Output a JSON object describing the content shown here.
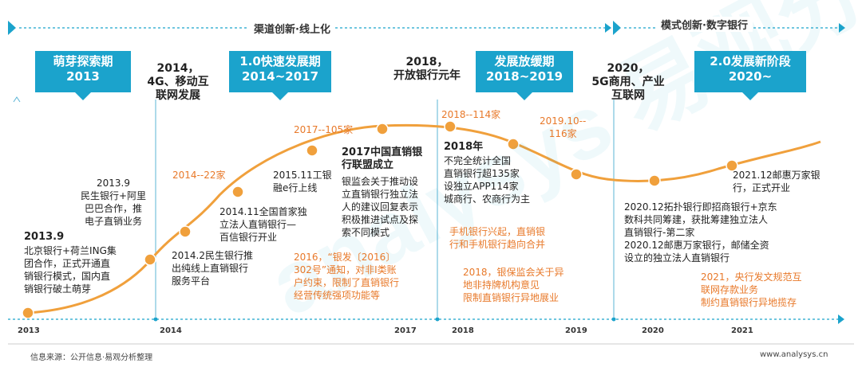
{
  "periods": [
    {
      "title": "渠道创新·线上化"
    },
    {
      "title": "模式创新·数字银行"
    }
  ],
  "phases": [
    {
      "line1": "萌芽探索期",
      "line2": "2013"
    },
    {
      "line1": "1.0快速发展期",
      "line2": "2014~2017"
    },
    {
      "line1": "发展放缓期",
      "line2": "2018~2019"
    },
    {
      "line1": "2.0发展新阶段",
      "line2": "2020~"
    }
  ],
  "events": [
    {
      "lines": [
        "2014，",
        "4G、移动互",
        "联网发展"
      ]
    },
    {
      "lines": [
        "2018，",
        "开放银行元年"
      ]
    },
    {
      "lines": [
        "2020，",
        "5G商用、产业",
        "互联网"
      ]
    }
  ],
  "counts": [
    {
      "text": "2014--22家"
    },
    {
      "text": "2017--105家"
    },
    {
      "text": "2018--114家"
    },
    {
      "text": "2019.10--\n116家"
    }
  ],
  "notes": [
    {
      "lines": [
        "2013.9"
      ]
    },
    {
      "lines": [
        "北京银行+荷兰ING集",
        "团合作，正式开通直",
        "销银行模式，国内直",
        "销银行破土萌芽"
      ]
    },
    {
      "lines": [
        "2013.9",
        "民生银行+阿里",
        "巴巴合作，推",
        "电子直销业务"
      ]
    },
    {
      "lines": [
        "2014.2民生银行推",
        "出纯线上直销银行",
        "服务平台"
      ]
    },
    {
      "lines": [
        "2014.11全国首家独",
        "立法人直销银行—",
        "百信银行开业"
      ]
    },
    {
      "lines": [
        "2015.11工银",
        "融e行上线"
      ]
    },
    {
      "lines": [
        "2017中国直销银",
        "行联盟成立"
      ]
    },
    {
      "lines": [
        "银监会关于推动设",
        "立直销银行独立法",
        "人的建议回复表示",
        "积极推进试点及探",
        "索不同模式"
      ]
    },
    {
      "lines": [
        "2018年"
      ]
    },
    {
      "lines": [
        "不完全统计全国",
        "直销银行超135家",
        "设独立APP114家",
        "城商行、农商行为主"
      ]
    },
    {
      "lines": [
        "2021.12邮惠万家银",
        "行，正式开业"
      ]
    },
    {
      "lines": [
        "2020.12拓扑银行即招商银行+京东",
        "数科共同筹建，获批筹建独立法人",
        "直销银行-第二家",
        "2020.12邮惠万家银行，邮储全资",
        "设立的独立法人直销银行"
      ]
    }
  ],
  "orange_notes": [
    {
      "lines": [
        "2016，“银发〔2016〕",
        "302号”通知，对非I类账",
        "户约束，限制了直销银行",
        "经营传统强项功能等"
      ]
    },
    {
      "lines": [
        "手机银行兴起，直销银",
        "行和手机银行趋向合并"
      ]
    },
    {
      "lines": [
        "2018，银保监会关于异",
        "地非持牌机构意见",
        "限制直销银行异地展业"
      ]
    },
    {
      "lines": [
        "2021，央行发文规范互",
        "联网存款业务",
        "制约直销银行异地揽存"
      ]
    }
  ],
  "years": [
    "2013",
    "2014",
    "2017",
    "2018",
    "2019",
    "2020",
    "2021"
  ],
  "footer": {
    "source": "信息来源：公开信息·易观分析整理",
    "site": "www.analysys.cn"
  },
  "watermark": "analysys 易观分析",
  "colors": {
    "accent": "#1ba3cc",
    "curve": "#f0a03c",
    "orange_text": "#e8792a"
  }
}
